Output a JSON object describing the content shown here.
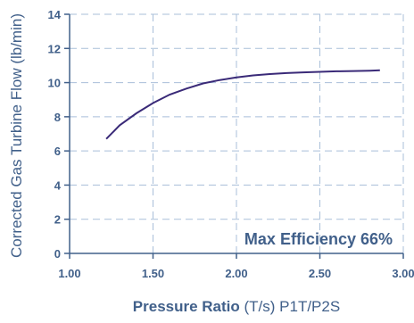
{
  "chart_data": {
    "type": "line",
    "x_ticks": [
      "1.00",
      "1.50",
      "2.00",
      "2.50",
      "3.00"
    ],
    "y_ticks": [
      "0",
      "2",
      "4",
      "6",
      "8",
      "10",
      "12",
      "14"
    ],
    "xlim": [
      1.0,
      3.0
    ],
    "ylim": [
      0,
      14
    ],
    "grid": true,
    "xlabel_bold": "Pressure Ratio",
    "xlabel_rest": " (T/s) P1T/P2S",
    "ylabel": "Corrected Gas Turbine Flow (lb/min)",
    "annotation": "Max Efficiency 66%",
    "series": [
      {
        "color": "#3a2a78",
        "x": [
          1.22,
          1.3,
          1.4,
          1.5,
          1.6,
          1.7,
          1.8,
          1.9,
          2.0,
          2.1,
          2.2,
          2.3,
          2.4,
          2.5,
          2.6,
          2.7,
          2.8,
          2.86
        ],
        "y": [
          6.7,
          7.5,
          8.2,
          8.8,
          9.3,
          9.65,
          9.95,
          10.15,
          10.3,
          10.42,
          10.5,
          10.56,
          10.6,
          10.63,
          10.66,
          10.68,
          10.7,
          10.72
        ]
      }
    ]
  }
}
